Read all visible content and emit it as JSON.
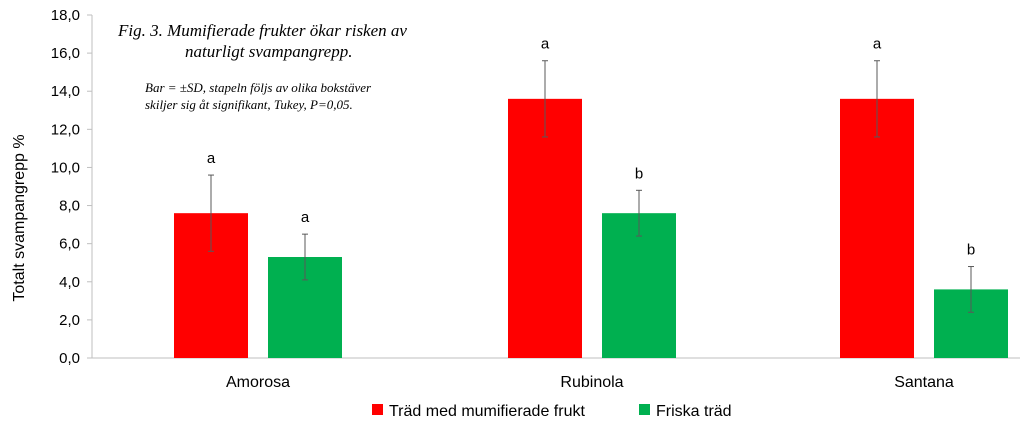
{
  "chart_data": {
    "type": "bar",
    "title_lines": [
      "Fig. 3. Mumifierade frukter ökar risken av",
      "naturligt svampangrepp."
    ],
    "note_lines": [
      "Bar = ±SD, stapeln följs av olika bokstäver",
      "skiljer sig åt signifikant, Tukey, P=0,05."
    ],
    "ylabel": "Totalt svampangrepp %",
    "xlabel": "",
    "ylim": [
      0,
      18
    ],
    "yticks": [
      "0,0",
      "2,0",
      "4,0",
      "6,0",
      "8,0",
      "10,0",
      "12,0",
      "14,0",
      "16,0",
      "18,0"
    ],
    "categories": [
      "Amorosa",
      "Rubinola",
      "Santana"
    ],
    "series": [
      {
        "name": "Träd med mumifierade frukt",
        "color": "#ff0000",
        "values": [
          7.6,
          13.6,
          13.6
        ],
        "sd": [
          2.0,
          2.0,
          2.0
        ],
        "letters": [
          "a",
          "a",
          "a"
        ]
      },
      {
        "name": "Friska träd",
        "color": "#00b050",
        "values": [
          5.3,
          7.6,
          3.6
        ],
        "sd": [
          1.2,
          1.2,
          1.2
        ],
        "letters": [
          "a",
          "b",
          "b"
        ]
      }
    ],
    "grid": false,
    "legend_position": "bottom"
  }
}
